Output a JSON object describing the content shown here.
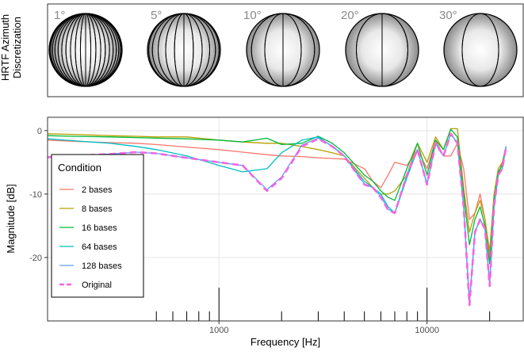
{
  "azimuth_panel": {
    "title_lines": [
      "HRTF Azimuth",
      "Discretization"
    ],
    "labels": [
      "1°",
      "5°",
      "10°",
      "20°",
      "30°"
    ]
  },
  "chart_data": {
    "type": "line",
    "x_label": "Frequency [Hz]",
    "y_label": "Magnitude [dB]",
    "x": [
      150,
      200,
      300,
      400,
      500,
      700,
      1000,
      1300,
      1700,
      2000,
      2500,
      3000,
      3500,
      4000,
      5000,
      5500,
      6000,
      6500,
      7000,
      8000,
      9000,
      10000,
      11000,
      12000,
      13000,
      14000,
      15000,
      16000,
      17000,
      18000,
      19000,
      20000,
      21000,
      22000,
      23000,
      24000
    ],
    "xlim": [
      150,
      29000
    ],
    "xticks": [
      1000,
      10000
    ],
    "xscale": "log",
    "x_minor_ticks": [
      500,
      600,
      700,
      800,
      900,
      2000,
      3000,
      4000,
      5000,
      6000,
      7000,
      8000,
      9000,
      20000
    ],
    "ylim": [
      -30,
      2.1
    ],
    "yticks": [
      0,
      -10,
      -20
    ],
    "grid": true,
    "legend_title": "Condition",
    "legend_position": "bottom-left",
    "series": [
      {
        "name": "2 bases",
        "color": "#F8766D",
        "linestyle": "solid",
        "values": [
          -1.5,
          -1.7,
          -1.9,
          -2.0,
          -2.2,
          -2.6,
          -3.0,
          -3.4,
          -3.8,
          -4.0,
          -4.1,
          -4.3,
          -4.4,
          -4.5,
          -6.0,
          -8.0,
          -9.0,
          -7.0,
          -5.0,
          -5.5,
          -3.0,
          -6.0,
          -1.5,
          -4.0,
          -4.0,
          -2.0,
          -6.0,
          -14.0,
          -13.0,
          -10.0,
          -14.0,
          -20.0,
          -11.0,
          -7.0,
          -5.0,
          -3.0
        ]
      },
      {
        "name": "8 bases",
        "color": "#B79F00",
        "linestyle": "solid",
        "values": [
          -0.5,
          -0.6,
          -0.8,
          -0.9,
          -1.0,
          -1.0,
          -1.5,
          -1.8,
          -2.0,
          -2.0,
          -2.5,
          -3.0,
          -3.5,
          -4.0,
          -7.5,
          -9.0,
          -10.0,
          -10.0,
          -9.5,
          -7.0,
          -2.0,
          -5.0,
          -1.0,
          -3.0,
          0.3,
          0.3,
          -9.0,
          -16.0,
          -13.0,
          -11.0,
          -14.0,
          -19.0,
          -10.0,
          -6.0,
          -5.0,
          -2.5
        ]
      },
      {
        "name": "16 bases",
        "color": "#00BA38",
        "linestyle": "solid",
        "values": [
          -0.8,
          -0.9,
          -1.0,
          -1.1,
          -1.2,
          -1.3,
          -1.5,
          -1.8,
          -1.2,
          -2.2,
          -2.0,
          -0.9,
          -2.0,
          -3.5,
          -7.0,
          -8.0,
          -9.5,
          -10.5,
          -11.0,
          -6.0,
          -2.0,
          -7.0,
          -1.5,
          -3.0,
          0.2,
          -1.0,
          -10.0,
          -18.0,
          -14.0,
          -12.0,
          -15.0,
          -21.0,
          -11.0,
          -6.5,
          -5.5,
          -2.5
        ]
      },
      {
        "name": "64 bases",
        "color": "#00BFC4",
        "linestyle": "solid",
        "values": [
          -1.3,
          -1.6,
          -2.0,
          -2.5,
          -3.0,
          -4.0,
          -5.5,
          -6.5,
          -6.0,
          -3.5,
          -1.5,
          -1.0,
          -2.5,
          -4.0,
          -8.0,
          -9.0,
          -10.0,
          -12.0,
          -13.0,
          -7.5,
          -3.0,
          -8.5,
          -2.0,
          -4.0,
          -0.5,
          -2.0,
          -12.0,
          -27.0,
          -16.0,
          -14.0,
          -15.5,
          -24.0,
          -12.0,
          -7.0,
          -6.0,
          -2.5
        ]
      },
      {
        "name": "128 bases",
        "color": "#619CFF",
        "linestyle": "solid",
        "values": [
          -4.2,
          -4.0,
          -3.7,
          -3.4,
          -3.6,
          -4.3,
          -5.0,
          -5.5,
          -9.3,
          -7.3,
          -2.3,
          -1.2,
          -2.4,
          -4.0,
          -8.4,
          -9.0,
          -10.4,
          -12.4,
          -13.0,
          -7.0,
          -3.0,
          -8.4,
          -2.0,
          -4.0,
          -0.5,
          -2.0,
          -12.0,
          -27.3,
          -16.0,
          -14.0,
          -15.5,
          -24.3,
          -12.0,
          -7.0,
          -6.0,
          -2.5
        ]
      },
      {
        "name": "Original",
        "color": "#F564E3",
        "linestyle": "dashed",
        "values": [
          -4.2,
          -4.0,
          -3.7,
          -3.4,
          -3.6,
          -4.3,
          -5.0,
          -5.5,
          -9.5,
          -7.5,
          -2.5,
          -1.3,
          -2.5,
          -4.0,
          -8.5,
          -9.0,
          -10.5,
          -12.5,
          -13.0,
          -7.0,
          -3.0,
          -8.5,
          -2.0,
          -4.0,
          -0.5,
          -2.0,
          -12.0,
          -27.5,
          -16.0,
          -14.0,
          -15.5,
          -24.5,
          -12.0,
          -7.0,
          -6.0,
          -2.5
        ]
      }
    ]
  }
}
